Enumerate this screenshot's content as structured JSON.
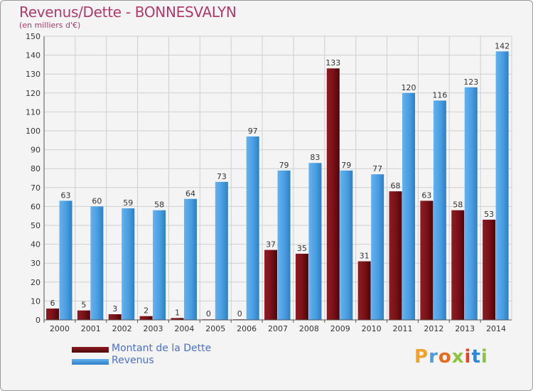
{
  "header": {
    "title": "Revenus/Dette - BONNESVALYN",
    "subtitle": "(en milliers d'€)"
  },
  "legend": {
    "items": [
      {
        "label": "Montant de la Dette",
        "color": "#6e0e12"
      },
      {
        "label": "Revenus",
        "color": "#4a9de0"
      }
    ]
  },
  "logo": {
    "text": "Proxiti"
  },
  "chart_data": {
    "type": "bar",
    "title": "Revenus/Dette - BONNESVALYN",
    "subtitle": "(en milliers d'€)",
    "categories": [
      "2000",
      "2001",
      "2002",
      "2003",
      "2004",
      "2005",
      "2006",
      "2007",
      "2008",
      "2009",
      "2010",
      "2011",
      "2012",
      "2013",
      "2014"
    ],
    "series": [
      {
        "name": "Montant de la Dette",
        "color": "#6e0e12",
        "values": [
          6,
          5,
          3,
          2,
          1,
          0,
          0,
          37,
          35,
          133,
          31,
          68,
          63,
          58,
          53
        ]
      },
      {
        "name": "Revenus",
        "color": "#4a9de0",
        "values": [
          63,
          60,
          59,
          58,
          64,
          73,
          97,
          79,
          83,
          79,
          77,
          120,
          116,
          123,
          142
        ]
      }
    ],
    "ylim": [
      0,
      150
    ],
    "yticks": [
      0,
      10,
      20,
      30,
      40,
      50,
      60,
      70,
      80,
      90,
      100,
      110,
      120,
      130,
      140,
      150
    ],
    "grid": true,
    "legend": "bottom-left"
  }
}
